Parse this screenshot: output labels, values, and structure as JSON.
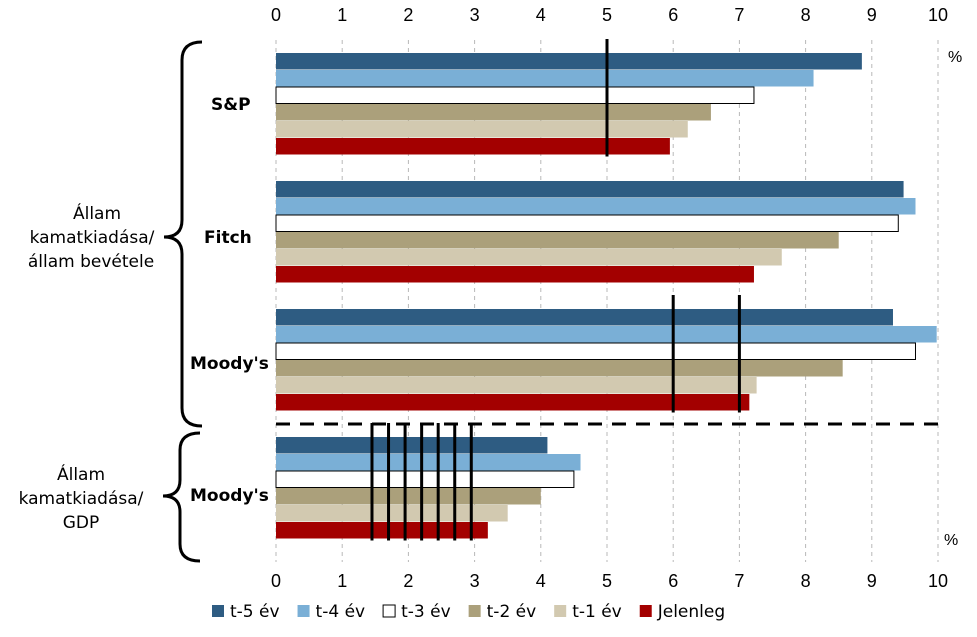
{
  "chart_data": {
    "type": "bar",
    "orientation": "horizontal",
    "x_axis": {
      "min": 0,
      "max": 10,
      "ticks": [
        "0",
        "1",
        "2",
        "3",
        "4",
        "5",
        "6",
        "7",
        "8",
        "9",
        "10"
      ]
    },
    "unit_label": "%",
    "series": [
      {
        "name": "t-5 év",
        "color": "#2e5c82"
      },
      {
        "name": "t-4 év",
        "color": "#7aafd6"
      },
      {
        "name": "t-3 év",
        "color": "#ffffff"
      },
      {
        "name": "t-2 év",
        "color": "#aba07b"
      },
      {
        "name": "t-1 év",
        "color": "#d2c9b0"
      },
      {
        "name": "Jelenleg",
        "color": "#a30000"
      }
    ],
    "groups": [
      {
        "label": "S&P",
        "values": [
          8.85,
          8.12,
          7.22,
          6.57,
          6.22,
          5.95
        ],
        "thresholds": [
          5
        ]
      },
      {
        "label": "Fitch",
        "values": [
          9.48,
          9.66,
          9.4,
          8.5,
          7.64,
          7.22
        ],
        "thresholds": []
      },
      {
        "label": "Moody's",
        "values": [
          9.32,
          9.98,
          9.66,
          8.56,
          7.26,
          7.15
        ],
        "thresholds": [
          6,
          7
        ]
      },
      {
        "label": "Moody's",
        "values": [
          4.1,
          4.6,
          4.5,
          4.0,
          3.5,
          3.2
        ],
        "thresholds": [
          1.45,
          1.7,
          1.95,
          2.2,
          2.45,
          2.7,
          2.95
        ]
      }
    ],
    "section_labels": [
      {
        "lines": [
          "Állam",
          "kamatkiadása/",
          "állam  bevétele"
        ]
      },
      {
        "lines": [
          "Állam",
          "kamatkiadása/",
          "GDP"
        ]
      }
    ]
  }
}
